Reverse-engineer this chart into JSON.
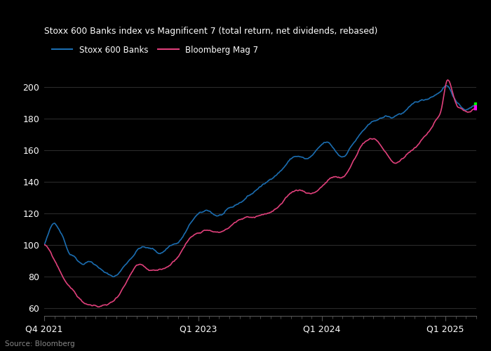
{
  "title": "Stoxx 600 Banks index vs Magnificent 7 (total return, net dividends, rebased)",
  "source": "Source: Bloomberg",
  "legend": [
    "Stoxx 600 Banks",
    "Bloomberg Mag 7"
  ],
  "line_colors": [
    "#1b6db0",
    "#e0407b"
  ],
  "end_marker_colors": [
    "#00ff00",
    "#ff00ff"
  ],
  "background_color": "#000000",
  "text_color": "#ffffff",
  "grid_color": "#2a2a2a",
  "ylim": [
    55,
    215
  ],
  "yticks": [
    60,
    80,
    100,
    120,
    140,
    160,
    180,
    200
  ],
  "x_tick_labels": [
    "Q4 2021",
    "Q1 2023",
    "Q1 2024",
    "Q1 2025"
  ],
  "total_months": 42,
  "tick_months": [
    0,
    15,
    27,
    39
  ],
  "stoxx_base": [
    100,
    108,
    113,
    110,
    104,
    96,
    94,
    91,
    90,
    92,
    90,
    88,
    85,
    83,
    82,
    84,
    88,
    92,
    96,
    100,
    101,
    100,
    99,
    97,
    98,
    101,
    103,
    104,
    108,
    113,
    118,
    121,
    122,
    123,
    121,
    120,
    121,
    123,
    124,
    126,
    128,
    131,
    133,
    136,
    138,
    140,
    143,
    146,
    149,
    153,
    156,
    157,
    156,
    155,
    157,
    160,
    163,
    164,
    161,
    157,
    155,
    158,
    163,
    167,
    171,
    174,
    176,
    178,
    179,
    180,
    179,
    181,
    182,
    184,
    186,
    188,
    189,
    190,
    192,
    194,
    197,
    200,
    196,
    190,
    186,
    185,
    186,
    188
  ],
  "mag7_base": [
    100,
    96,
    90,
    84,
    78,
    74,
    70,
    66,
    63,
    62,
    61,
    60,
    61,
    62,
    64,
    68,
    73,
    78,
    83,
    85,
    84,
    81,
    80,
    80,
    81,
    83,
    86,
    90,
    95,
    100,
    103,
    105,
    107,
    108,
    108,
    107,
    108,
    110,
    112,
    114,
    115,
    116,
    116,
    117,
    118,
    119,
    120,
    122,
    124,
    127,
    130,
    131,
    131,
    130,
    130,
    132,
    135,
    138,
    140,
    140,
    139,
    142,
    148,
    154,
    160,
    163,
    164,
    162,
    158,
    153,
    149,
    148,
    150,
    153,
    156,
    159,
    163,
    166,
    170,
    176,
    183,
    200,
    196,
    185,
    182,
    180,
    181,
    182
  ],
  "noise_seed_stoxx": 42,
  "noise_seed_mag7": 99,
  "noise_scale_stoxx": 2.5,
  "noise_scale_mag7": 2.5
}
